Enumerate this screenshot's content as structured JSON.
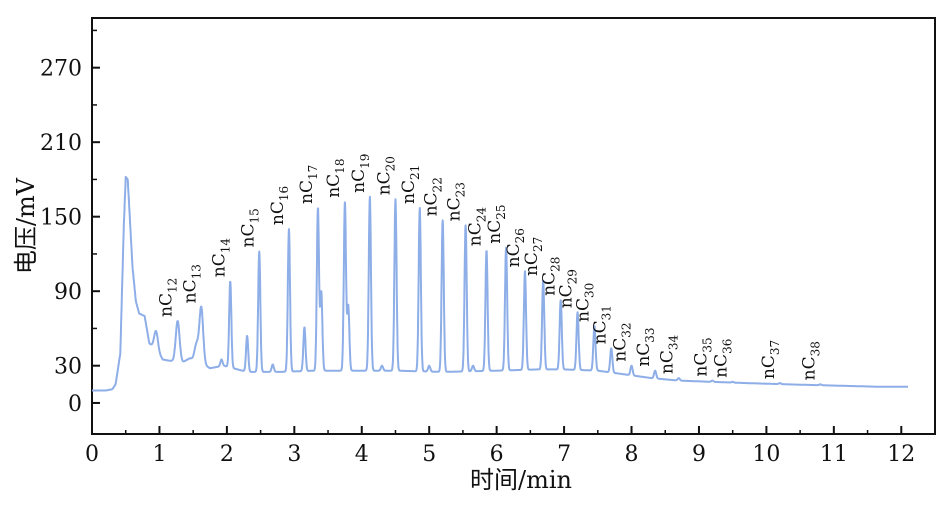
{
  "chart_data": {
    "type": "line",
    "title": "",
    "xlabel": "时间/min",
    "ylabel": "电压/mV",
    "xlim": [
      0,
      12.5
    ],
    "ylim": [
      -25,
      310
    ],
    "x_ticks": [
      0,
      1,
      2,
      3,
      4,
      5,
      6,
      7,
      8,
      9,
      10,
      11,
      12
    ],
    "y_ticks": [
      0,
      30,
      90,
      150,
      210,
      270
    ],
    "grid": false,
    "line_color": "#8eaee8",
    "baseline": [
      [
        0,
        10
      ],
      [
        0.2,
        10
      ],
      [
        0.3,
        11
      ],
      [
        0.35,
        15
      ],
      [
        0.42,
        40
      ],
      [
        0.47,
        140
      ],
      [
        0.5,
        182
      ],
      [
        0.53,
        180
      ],
      [
        0.6,
        110
      ],
      [
        0.65,
        82
      ],
      [
        0.7,
        72
      ],
      [
        0.78,
        70
      ],
      [
        0.85,
        48
      ],
      [
        0.95,
        43
      ],
      [
        1.05,
        35
      ],
      [
        1.15,
        34
      ],
      [
        1.35,
        33
      ],
      [
        1.45,
        36
      ],
      [
        1.52,
        35
      ],
      [
        1.75,
        28
      ],
      [
        1.95,
        30
      ],
      [
        2.3,
        25
      ],
      [
        2.8,
        25
      ],
      [
        3.3,
        26
      ],
      [
        3.8,
        26
      ],
      [
        4.5,
        26
      ],
      [
        5.2,
        25
      ],
      [
        6.0,
        26
      ],
      [
        6.6,
        27
      ],
      [
        7.0,
        27
      ],
      [
        7.5,
        26
      ],
      [
        7.9,
        23
      ],
      [
        8.3,
        20
      ],
      [
        8.7,
        18
      ],
      [
        9.2,
        17
      ],
      [
        9.7,
        16
      ],
      [
        10.3,
        15
      ],
      [
        11.0,
        14
      ],
      [
        11.7,
        13
      ],
      [
        12.1,
        13
      ]
    ],
    "peaks": [
      {
        "label": "nC12",
        "x": 1.27,
        "y": 66
      },
      {
        "label": "nC13",
        "x": 1.62,
        "y": 77
      },
      {
        "label": "nC14",
        "x": 2.05,
        "y": 98
      },
      {
        "label": "nC15",
        "x": 2.48,
        "y": 122
      },
      {
        "label": "nC16",
        "x": 2.92,
        "y": 140
      },
      {
        "label": "nC17",
        "x": 3.35,
        "y": 157
      },
      {
        "label": "nC18",
        "x": 3.75,
        "y": 162
      },
      {
        "label": "nC19",
        "x": 4.12,
        "y": 166
      },
      {
        "label": "nC20",
        "x": 4.5,
        "y": 164
      },
      {
        "label": "nC21",
        "x": 4.86,
        "y": 157
      },
      {
        "label": "nC22",
        "x": 5.2,
        "y": 147
      },
      {
        "label": "nC23",
        "x": 5.54,
        "y": 143
      },
      {
        "label": "nC24",
        "x": 5.85,
        "y": 123
      },
      {
        "label": "nC25",
        "x": 6.14,
        "y": 125
      },
      {
        "label": "nC26",
        "x": 6.42,
        "y": 106
      },
      {
        "label": "nC27",
        "x": 6.69,
        "y": 99
      },
      {
        "label": "nC28",
        "x": 6.95,
        "y": 83
      },
      {
        "label": "nC29",
        "x": 7.2,
        "y": 73
      },
      {
        "label": "nC30",
        "x": 7.45,
        "y": 62
      },
      {
        "label": "nC31",
        "x": 7.7,
        "y": 44
      },
      {
        "label": "nC32",
        "x": 8.0,
        "y": 30
      },
      {
        "label": "nC33",
        "x": 8.35,
        "y": 26
      },
      {
        "label": "nC34",
        "x": 8.7,
        "y": 20
      },
      {
        "label": "nC35",
        "x": 9.2,
        "y": 18
      },
      {
        "label": "nC36",
        "x": 9.5,
        "y": 17
      },
      {
        "label": "nC37",
        "x": 10.2,
        "y": 16
      },
      {
        "label": "nC38",
        "x": 10.8,
        "y": 15
      }
    ],
    "minor_peaks": [
      {
        "x": 0.95,
        "y": 58
      },
      {
        "x": 1.55,
        "y": 47
      },
      {
        "x": 1.92,
        "y": 35
      },
      {
        "x": 2.3,
        "y": 54
      },
      {
        "x": 2.68,
        "y": 31
      },
      {
        "x": 3.15,
        "y": 61
      },
      {
        "x": 3.4,
        "y": 89
      },
      {
        "x": 3.8,
        "y": 78
      },
      {
        "x": 4.3,
        "y": 30
      },
      {
        "x": 5.0,
        "y": 30
      },
      {
        "x": 5.65,
        "y": 30
      }
    ]
  }
}
